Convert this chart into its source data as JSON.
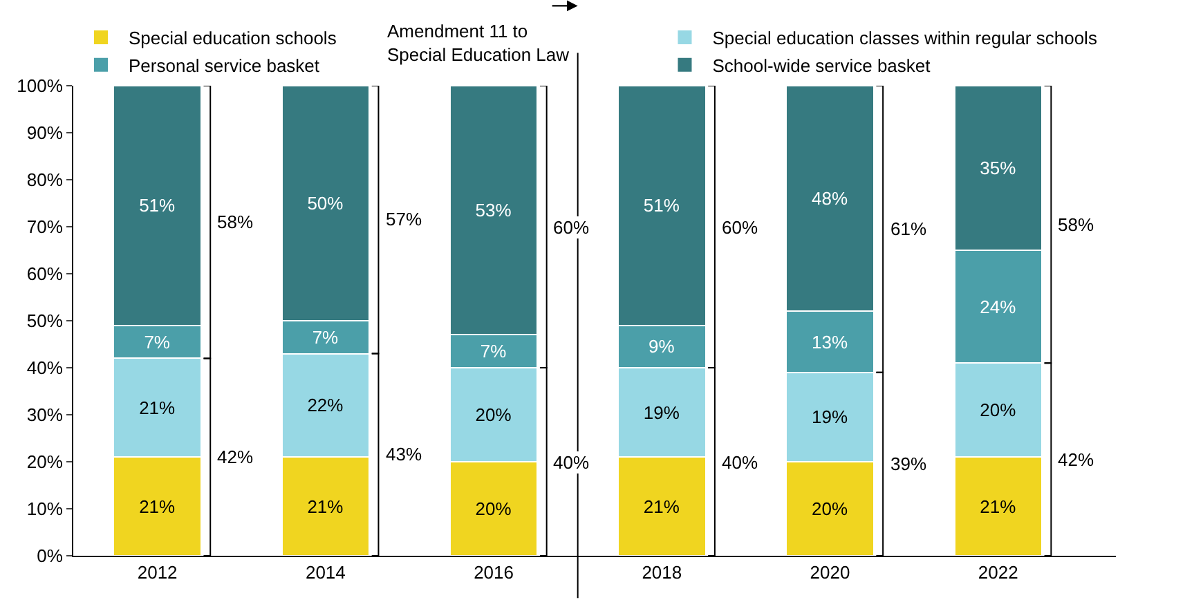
{
  "chart_data": {
    "type": "bar",
    "stacked": true,
    "x": [
      2012,
      2014,
      2016,
      2018,
      2020,
      2022
    ],
    "xlim": [
      2011,
      2023.4
    ],
    "xticks": [
      2012,
      2014,
      2016,
      2018,
      2020,
      2022
    ],
    "ylim": [
      0,
      100
    ],
    "yticks": [
      {
        "value": 0,
        "label": "0%"
      },
      {
        "value": 10,
        "label": "10%"
      },
      {
        "value": 20,
        "label": "20%"
      },
      {
        "value": 30,
        "label": "30%"
      },
      {
        "value": 40,
        "label": "40%"
      },
      {
        "value": 50,
        "label": "50%"
      },
      {
        "value": 60,
        "label": "60%"
      },
      {
        "value": 70,
        "label": "70%"
      },
      {
        "value": 80,
        "label": "80%"
      },
      {
        "value": 90,
        "label": "90%"
      },
      {
        "value": 100,
        "label": "100%"
      }
    ],
    "series": [
      {
        "name": "Special education schools",
        "color": "#f0d520",
        "values": [
          21,
          21,
          20,
          21,
          20,
          21
        ],
        "value_labels": [
          "21%",
          "21%",
          "20%",
          "21%",
          "20%",
          "21%"
        ]
      },
      {
        "name": "Special education classes within regular schools",
        "color": "#97d8e4",
        "values": [
          21,
          22,
          20,
          19,
          19,
          20
        ],
        "value_labels": [
          "21%",
          "22%",
          "20%",
          "19%",
          "19%",
          "20%"
        ]
      },
      {
        "name": "Personal service basket",
        "color": "#4b9fa9",
        "values": [
          7,
          7,
          7,
          9,
          13,
          24
        ],
        "value_labels": [
          "7%",
          "7%",
          "7%",
          "9%",
          "13%",
          "24%"
        ]
      },
      {
        "name": "School-wide service basket",
        "color": "#367a80",
        "values": [
          51,
          50,
          53,
          51,
          48,
          35
        ],
        "value_labels": [
          "51%",
          "50%",
          "53%",
          "51%",
          "48%",
          "35%"
        ]
      }
    ],
    "legend": "top",
    "ref_lines": [
      {
        "axis": "x",
        "value": 2017,
        "label": "Amendment 11 to\nSpecial Education Law",
        "color": "#000000"
      }
    ],
    "annotations": [
      "42%",
      "43%",
      "40%",
      "40%",
      "39%",
      "42%",
      "58%",
      "57%",
      "60%",
      "60%",
      "61%",
      "58%"
    ]
  }
}
